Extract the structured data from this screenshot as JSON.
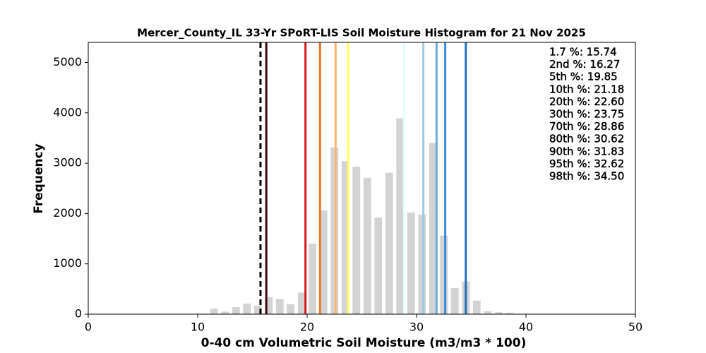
{
  "chart_data": {
    "type": "histogram",
    "title": "Mercer_County_IL 33-Yr SPoRT-LIS Soil Moisture Histogram for 21 Nov 2025",
    "xlabel": "0-40 cm Volumetric Soil Moisture (m3/m3 * 100)",
    "ylabel": "Frequency",
    "bins": [
      10,
      11,
      12,
      13,
      14,
      15,
      16,
      17,
      18,
      19,
      20,
      21,
      22,
      23,
      24,
      25,
      26,
      27,
      28,
      29,
      30,
      31,
      32,
      33,
      34,
      35,
      36,
      37,
      38,
      39
    ],
    "counts": [
      10,
      110,
      50,
      140,
      210,
      170,
      340,
      300,
      200,
      430,
      1400,
      2060,
      3310,
      3040,
      2930,
      2710,
      1920,
      2810,
      3890,
      2020,
      1980,
      3400,
      1560,
      520,
      650,
      270,
      60,
      40,
      30
    ],
    "color": "#d3d3d3",
    "xlim": [
      0,
      50
    ],
    "xticks": [
      0,
      10,
      20,
      30,
      40,
      50
    ],
    "ylim": [
      0,
      5400
    ],
    "yticks": [
      0,
      1000,
      2000,
      3000,
      4000,
      5000
    ],
    "lines": [
      {
        "label": "1.7 %: 15.74",
        "value": 15.74,
        "color": "#000000",
        "dashed": true
      },
      {
        "label": "2nd %: 16.27",
        "value": 16.27,
        "color": "#3d0a0a",
        "dashed": false
      },
      {
        "label": "5th %: 19.85",
        "value": 19.85,
        "color": "#d7191c",
        "dashed": false
      },
      {
        "label": "10th %: 21.18",
        "value": 21.18,
        "color": "#e8782a",
        "dashed": false
      },
      {
        "label": "20th %: 22.60",
        "value": 22.6,
        "color": "#fdb46b",
        "dashed": false
      },
      {
        "label": "30th %: 23.75",
        "value": 23.75,
        "color": "#ffff66",
        "dashed": false
      },
      {
        "label": "70th %: 28.86",
        "value": 28.86,
        "color": "#e0ffff",
        "dashed": false
      },
      {
        "label": "80th %: 30.62",
        "value": 30.62,
        "color": "#9ecae1",
        "dashed": false
      },
      {
        "label": "90th %: 31.83",
        "value": 31.83,
        "color": "#6aaee6",
        "dashed": false
      },
      {
        "label": "95th %: 32.62",
        "value": 32.62,
        "color": "#3a8ae0",
        "dashed": false
      },
      {
        "label": "98th %: 34.50",
        "value": 34.5,
        "color": "#1f6fc0",
        "dashed": false
      }
    ]
  }
}
